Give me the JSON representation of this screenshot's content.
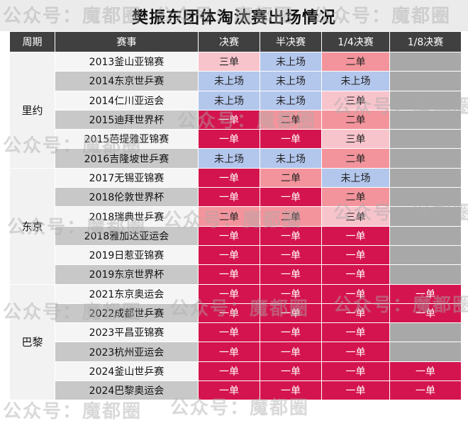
{
  "title": "樊振东团体淘汰赛出场情况",
  "watermark": "公众号：魔都圈",
  "headers": [
    "周期",
    "赛事",
    "决赛",
    "半决赛",
    "1/4决赛",
    "1/8决赛"
  ],
  "legend_colors": {
    "一单": "#d4144e",
    "二单": "#f3949c",
    "三单": "#f8c4cc",
    "未上场": "#b3c6ec",
    "无": "#a8a8a8"
  },
  "periods": [
    {
      "name": "里约",
      "rows": 6
    },
    {
      "name": "东京",
      "rows": 6
    },
    {
      "name": "巴黎",
      "rows": 6
    }
  ],
  "rows": [
    {
      "event": "2013釜山亚锦赛",
      "final": "三单",
      "semi": "未上场",
      "qf": "二单",
      "r16": ""
    },
    {
      "event": "2014东京世乒赛",
      "final": "未上场",
      "semi": "未上场",
      "qf": "未上场",
      "r16": ""
    },
    {
      "event": "2014仁川亚运会",
      "final": "未上场",
      "semi": "未上场",
      "qf": "三单",
      "r16": ""
    },
    {
      "event": "2015迪拜世界杯",
      "final": "一单",
      "semi": "二单",
      "qf": "二单",
      "r16": ""
    },
    {
      "event": "2015芭提雅亚锦赛",
      "final": "一单",
      "semi": "一单",
      "qf": "三单",
      "r16": ""
    },
    {
      "event": "2016吉隆坡世乒赛",
      "final": "未上场",
      "semi": "未上场",
      "qf": "二单",
      "r16": ""
    },
    {
      "event": "2017无锡亚锦赛",
      "final": "一单",
      "semi": "二单",
      "qf": "未上场",
      "r16": ""
    },
    {
      "event": "2018伦敦世界杯",
      "final": "一单",
      "semi": "一单",
      "qf": "二单",
      "r16": ""
    },
    {
      "event": "2018瑞典世乒赛",
      "final": "二单",
      "semi": "二单",
      "qf": "三单",
      "r16": ""
    },
    {
      "event": "2018雅加达亚运会",
      "final": "一单",
      "semi": "一单",
      "qf": "一单",
      "r16": ""
    },
    {
      "event": "2019日惹亚锦赛",
      "final": "一单",
      "semi": "一单",
      "qf": "一单",
      "r16": ""
    },
    {
      "event": "2019东京世界杯",
      "final": "一单",
      "semi": "一单",
      "qf": "一单",
      "r16": ""
    },
    {
      "event": "2021东京奥运会",
      "final": "一单",
      "semi": "一单",
      "qf": "一单",
      "r16": "一单"
    },
    {
      "event": "2022成都世乒赛",
      "final": "一单",
      "semi": "一单",
      "qf": "一单",
      "r16": "一单"
    },
    {
      "event": "2023平昌亚锦赛",
      "final": "一单",
      "semi": "一单",
      "qf": "一单",
      "r16": ""
    },
    {
      "event": "2023杭州亚运会",
      "final": "一单",
      "semi": "一单",
      "qf": "一单",
      "r16": ""
    },
    {
      "event": "2024釜山世乒赛",
      "final": "一单",
      "semi": "一单",
      "qf": "一单",
      "r16": "一单"
    },
    {
      "event": "2024巴黎奥运会",
      "final": "一单",
      "semi": "一单",
      "qf": "一单",
      "r16": "一单"
    }
  ]
}
